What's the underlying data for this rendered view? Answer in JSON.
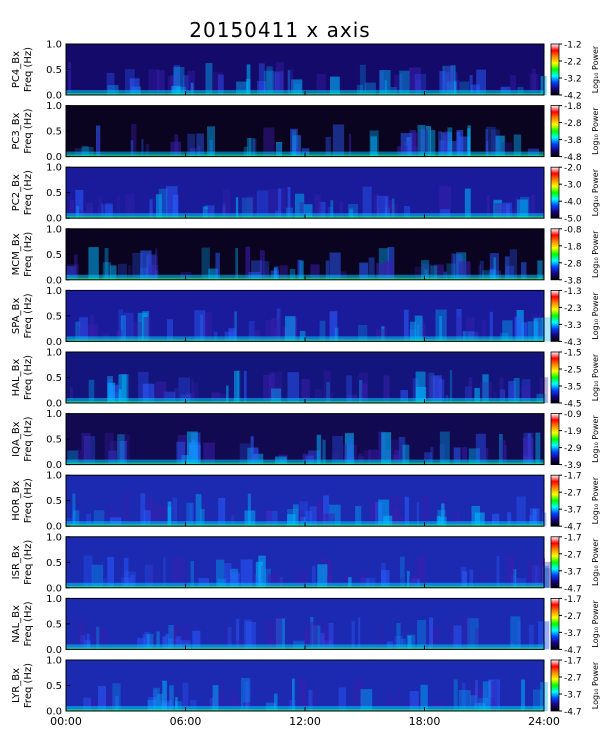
{
  "title": "20150411 x axis",
  "colors": {
    "panel_dark": "#0b0420",
    "axis": "#000000",
    "colormap": [
      "#ffffff",
      "#ff0000",
      "#ff8800",
      "#ffff00",
      "#00ff00",
      "#00ffff",
      "#0044ff",
      "#1a0080",
      "#000000"
    ]
  },
  "chart_data": [
    {
      "type": "heatmap",
      "station": "PC4",
      "ylabel": "PC4_Bx\nFreq (Hz)",
      "ylim": [
        0,
        1
      ],
      "yticks": [
        "0.0",
        "0.5",
        "1.0"
      ],
      "xlim": [
        "00:00",
        "24:00"
      ],
      "colorbar_label": "Log₁₀ Power",
      "colorbar_ticks": [
        "-1.2",
        "-2.2",
        "-3.2",
        "-4.2"
      ]
    },
    {
      "type": "heatmap",
      "station": "PC3",
      "ylabel": "PC3_Bx\nFreq (Hz)",
      "ylim": [
        0,
        1
      ],
      "yticks": [
        "0.0",
        "0.5",
        "1.0"
      ],
      "xlim": [
        "00:00",
        "24:00"
      ],
      "colorbar_label": "Log₁₀ Power",
      "colorbar_ticks": [
        "-1.8",
        "-2.8",
        "-3.8",
        "-4.8"
      ]
    },
    {
      "type": "heatmap",
      "station": "PC2",
      "ylabel": "PC2_Bx\nFreq (Hz)",
      "ylim": [
        0,
        1
      ],
      "yticks": [
        "0.0",
        "0.5",
        "1.0"
      ],
      "xlim": [
        "00:00",
        "24:00"
      ],
      "colorbar_label": "Log₁₀ Power",
      "colorbar_ticks": [
        "-2.0",
        "-3.0",
        "-4.0",
        "-5.0"
      ]
    },
    {
      "type": "heatmap",
      "station": "MCM",
      "ylabel": "MCM_Bx\nFreq (Hz)",
      "ylim": [
        0,
        1
      ],
      "yticks": [
        "0.0",
        "0.5",
        "1.0"
      ],
      "xlim": [
        "00:00",
        "24:00"
      ],
      "colorbar_label": "Log₁₀ Power",
      "colorbar_ticks": [
        "-0.8",
        "-1.8",
        "-2.8",
        "-3.8"
      ]
    },
    {
      "type": "heatmap",
      "station": "SPA",
      "ylabel": "SPA_Bx\nFreq (Hz)",
      "ylim": [
        0,
        1
      ],
      "yticks": [
        "0.0",
        "0.5",
        "1.0"
      ],
      "xlim": [
        "00:00",
        "24:00"
      ],
      "colorbar_label": "Log₁₀ Power",
      "colorbar_ticks": [
        "-1.3",
        "-2.3",
        "-3.3",
        "-4.3"
      ]
    },
    {
      "type": "heatmap",
      "station": "HAL",
      "ylabel": "HAL_Bx\nFreq (Hz)",
      "ylim": [
        0,
        1
      ],
      "yticks": [
        "0.0",
        "0.5",
        "1.0"
      ],
      "xlim": [
        "00:00",
        "24:00"
      ],
      "colorbar_label": "Log₁₀ Power",
      "colorbar_ticks": [
        "-1.5",
        "-2.5",
        "-3.5",
        "-4.5"
      ]
    },
    {
      "type": "heatmap",
      "station": "IQA",
      "ylabel": "IQA_Bx\nFreq (Hz)",
      "ylim": [
        0,
        1
      ],
      "yticks": [
        "0.0",
        "0.5",
        "1.0"
      ],
      "xlim": [
        "00:00",
        "24:00"
      ],
      "colorbar_label": "Log₁₀ Power",
      "colorbar_ticks": [
        "-0.9",
        "-1.9",
        "-2.9",
        "-3.9"
      ]
    },
    {
      "type": "heatmap",
      "station": "HOR",
      "ylabel": "HOR_Bx\nFreq (Hz)",
      "ylim": [
        0,
        1
      ],
      "yticks": [
        "0.0",
        "0.5",
        "1.0"
      ],
      "xlim": [
        "00:00",
        "24:00"
      ],
      "colorbar_label": "Log₁₀ Power",
      "colorbar_ticks": [
        "-1.7",
        "-2.7",
        "-3.7",
        "-4.7"
      ]
    },
    {
      "type": "heatmap",
      "station": "ISR",
      "ylabel": "ISR_Bx\nFreq (Hz)",
      "ylim": [
        0,
        1
      ],
      "yticks": [
        "0.0",
        "0.5",
        "1.0"
      ],
      "xlim": [
        "00:00",
        "24:00"
      ],
      "colorbar_label": "Log₁₀ Power",
      "colorbar_ticks": [
        "-1.7",
        "-2.7",
        "-3.7",
        "-4.7"
      ]
    },
    {
      "type": "heatmap",
      "station": "NAL",
      "ylabel": "NAL_Bx\nFreq (Hz)",
      "ylim": [
        0,
        1
      ],
      "yticks": [
        "0.0",
        "0.5",
        "1.0"
      ],
      "xlim": [
        "00:00",
        "24:00"
      ],
      "colorbar_label": "Log₁₀ Power",
      "colorbar_ticks": [
        "-1.7",
        "-2.7",
        "-3.7",
        "-4.7"
      ]
    },
    {
      "type": "heatmap",
      "station": "LYR",
      "ylabel": "LYR_Bx\nFreq (Hz)",
      "ylim": [
        0,
        1
      ],
      "yticks": [
        "0.0",
        "0.5",
        "1.0"
      ],
      "xlim": [
        "00:00",
        "24:00"
      ],
      "colorbar_label": "Log₁₀ Power",
      "colorbar_ticks": [
        "-1.7",
        "-2.7",
        "-3.7",
        "-4.7"
      ]
    }
  ],
  "xticks": [
    "00:00",
    "06:00",
    "12:00",
    "18:00",
    "24:00"
  ]
}
